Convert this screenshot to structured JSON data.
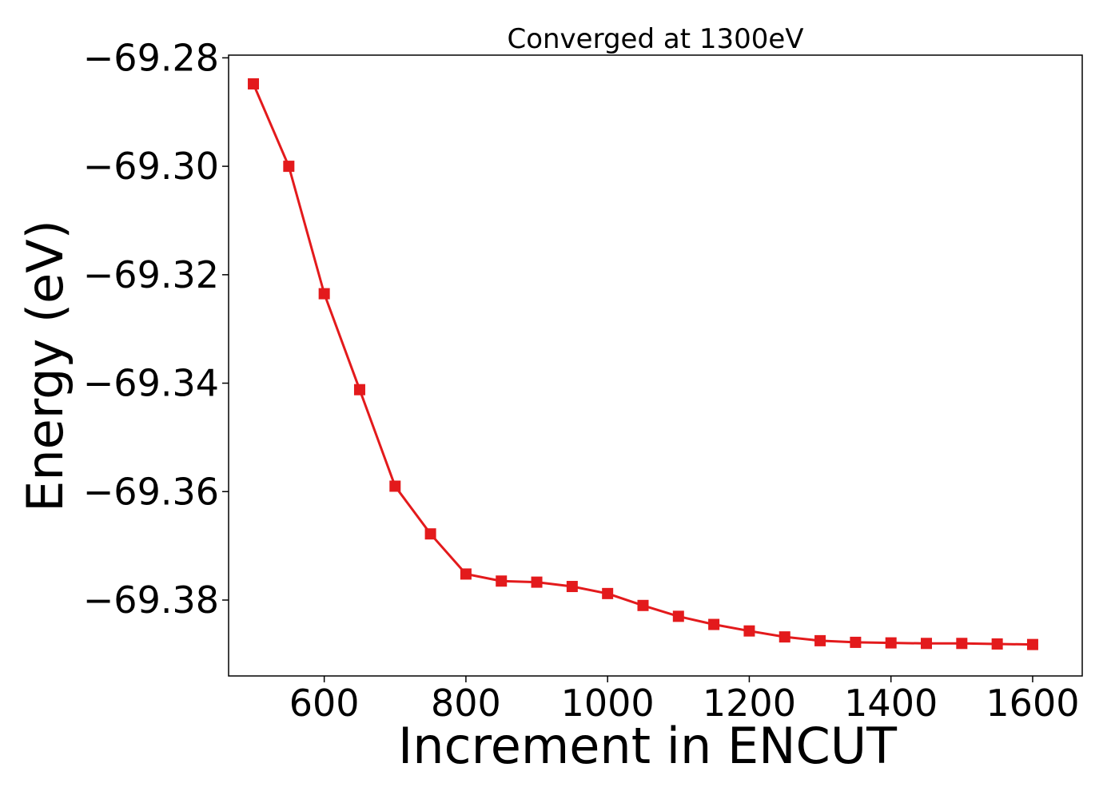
{
  "chart_data": {
    "type": "line",
    "title": "Converged at 1300eV",
    "xlabel": "Increment in ENCUT",
    "ylabel": "Energy (eV)",
    "xlim": [
      465,
      1670
    ],
    "ylim": [
      -69.394,
      -69.2795
    ],
    "xticks": [
      600,
      800,
      1000,
      1200,
      1400,
      1600
    ],
    "xtick_labels": [
      "600",
      "800",
      "1000",
      "1200",
      "1400",
      "1600"
    ],
    "yticks": [
      -69.28,
      -69.3,
      -69.32,
      -69.34,
      -69.36,
      -69.38
    ],
    "ytick_labels": [
      "−69.28",
      "−69.30",
      "−69.32",
      "−69.34",
      "−69.36",
      "−69.38"
    ],
    "grid": false,
    "series": [
      {
        "color": "#e31a1c",
        "marker": "square",
        "x": [
          500,
          550,
          600,
          650,
          700,
          750,
          800,
          850,
          900,
          950,
          1000,
          1050,
          1100,
          1150,
          1200,
          1250,
          1300,
          1350,
          1400,
          1450,
          1500,
          1550,
          1600
        ],
        "y": [
          -69.2848,
          -69.3,
          -69.3235,
          -69.3412,
          -69.359,
          -69.3678,
          -69.3752,
          -69.3765,
          -69.3767,
          -69.3775,
          -69.3788,
          -69.381,
          -69.383,
          -69.3845,
          -69.3857,
          -69.3868,
          -69.3875,
          -69.3878,
          -69.3879,
          -69.388,
          -69.388,
          -69.3881,
          -69.3882
        ]
      }
    ]
  }
}
